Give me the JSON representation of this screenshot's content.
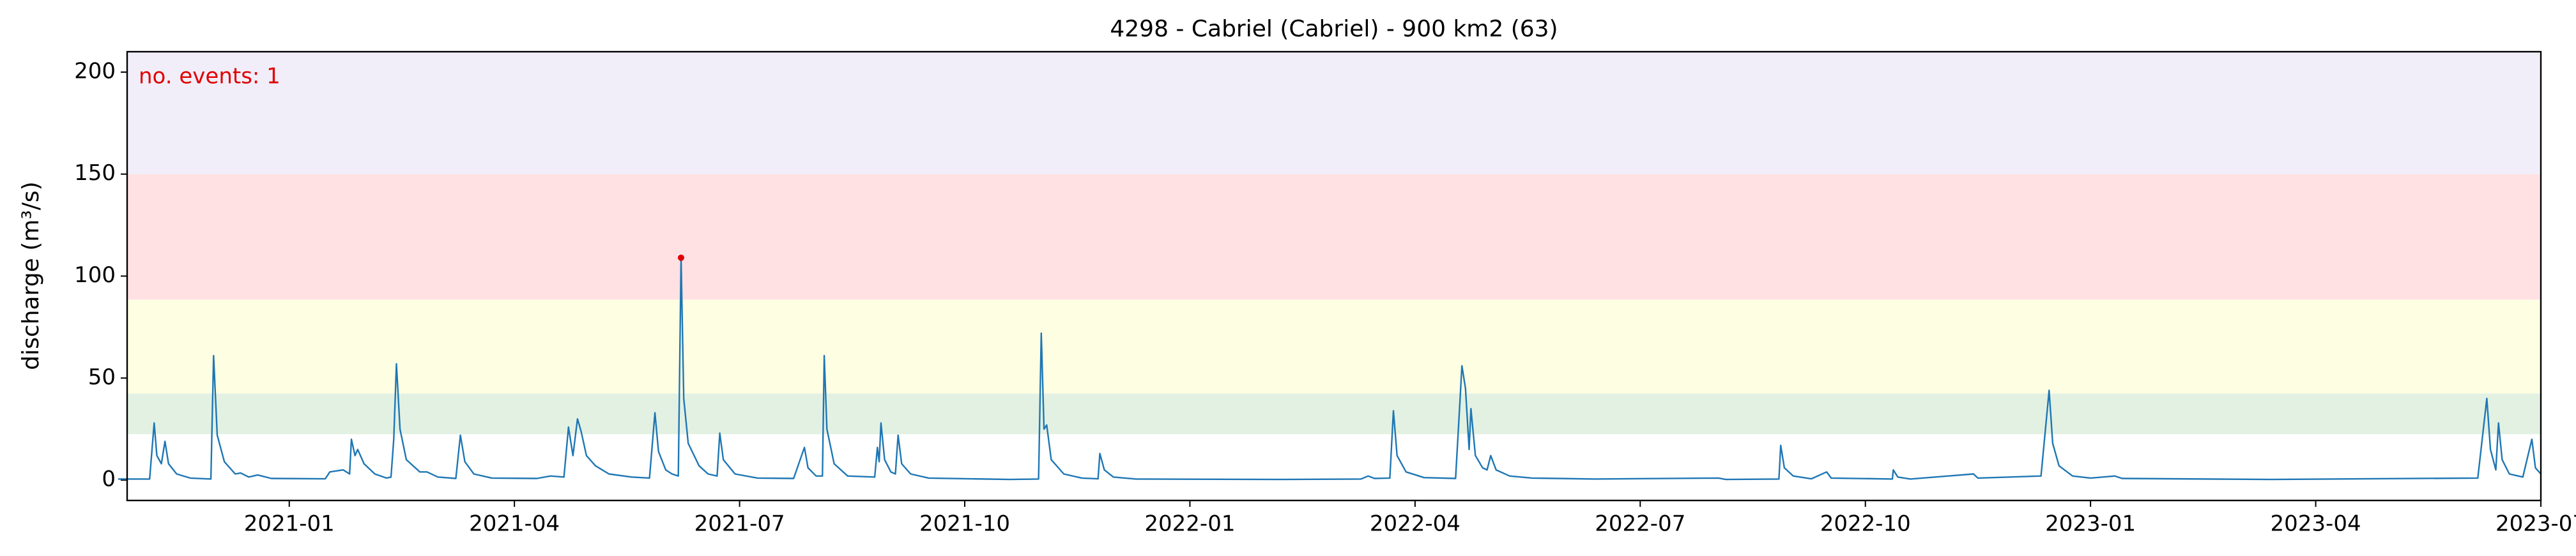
{
  "chart_data": {
    "type": "line",
    "title": "4298 - Cabriel (Cabriel) - 900 km2 (63)",
    "y_label": "discharge (m³/s)",
    "annotation": "no. events: 1",
    "annotation_color": "#e00000",
    "color": "#1f77b4",
    "xlim": [
      2020.82,
      2023.5
    ],
    "ylim": [
      -10,
      210
    ],
    "xticks": [
      {
        "value": 2021.0,
        "label": "2021-01"
      },
      {
        "value": 2021.25,
        "label": "2021-04"
      },
      {
        "value": 2021.5,
        "label": "2021-07"
      },
      {
        "value": 2021.75,
        "label": "2021-10"
      },
      {
        "value": 2022.0,
        "label": "2022-01"
      },
      {
        "value": 2022.25,
        "label": "2022-04"
      },
      {
        "value": 2022.5,
        "label": "2022-07"
      },
      {
        "value": 2022.75,
        "label": "2022-10"
      },
      {
        "value": 2023.0,
        "label": "2023-01"
      },
      {
        "value": 2023.25,
        "label": "2023-04"
      },
      {
        "value": 2023.5,
        "label": "2023-07"
      }
    ],
    "yticks": [
      0,
      50,
      100,
      150,
      200
    ],
    "bands": [
      {
        "from": 22.5,
        "to": 42.5,
        "color": "#e3f1e3"
      },
      {
        "from": 42.5,
        "to": 88.5,
        "color": "#fefee3"
      },
      {
        "from": 88.5,
        "to": 150,
        "color": "#ffe1e3"
      },
      {
        "from": 150,
        "to": 210,
        "color": "#f1eef9"
      }
    ],
    "x": [
      2020.81,
      2020.845,
      2020.85,
      2020.853,
      2020.858,
      2020.862,
      2020.866,
      2020.875,
      2020.89,
      2020.913,
      2020.916,
      2020.92,
      2020.928,
      2020.94,
      2020.946,
      2020.955,
      2020.965,
      2020.98,
      2021.04,
      2021.045,
      2021.06,
      2021.067,
      2021.069,
      2021.073,
      2021.076,
      2021.083,
      2021.095,
      2021.108,
      2021.113,
      2021.116,
      2021.119,
      2021.123,
      2021.13,
      2021.145,
      2021.153,
      2021.165,
      2021.185,
      2021.19,
      2021.195,
      2021.205,
      2021.225,
      2021.275,
      2021.29,
      2021.305,
      2021.31,
      2021.315,
      2021.32,
      2021.324,
      2021.33,
      2021.34,
      2021.355,
      2021.38,
      2021.4,
      2021.406,
      2021.41,
      2021.418,
      2021.425,
      2021.432,
      2021.435,
      2021.438,
      2021.443,
      2021.455,
      2021.465,
      2021.475,
      2021.478,
      2021.482,
      2021.495,
      2021.52,
      2021.56,
      2021.572,
      2021.576,
      2021.585,
      2021.592,
      2021.594,
      2021.597,
      2021.605,
      2021.62,
      2021.65,
      2021.653,
      2021.655,
      2021.657,
      2021.661,
      2021.668,
      2021.673,
      2021.676,
      2021.68,
      2021.69,
      2021.71,
      2021.8,
      2021.832,
      2021.835,
      2021.838,
      2021.841,
      2021.846,
      2021.86,
      2021.88,
      2021.898,
      2021.9,
      2021.905,
      2021.915,
      2021.94,
      2022.1,
      2022.19,
      2022.198,
      2022.205,
      2022.222,
      2022.226,
      2022.23,
      2022.24,
      2022.26,
      2022.295,
      2022.3,
      2022.302,
      2022.306,
      2022.31,
      2022.312,
      2022.317,
      2022.325,
      2022.33,
      2022.334,
      2022.34,
      2022.355,
      2022.38,
      2022.45,
      2022.587,
      2022.595,
      2022.654,
      2022.656,
      2022.66,
      2022.67,
      2022.69,
      2022.707,
      2022.712,
      2022.78,
      2022.781,
      2022.786,
      2022.8,
      2022.87,
      2022.875,
      2022.945,
      2022.951,
      2022.954,
      2022.958,
      2022.965,
      2022.98,
      2023.0,
      2023.027,
      2023.035,
      2023.2,
      2023.43,
      2023.44,
      2023.444,
      2023.45,
      2023.453,
      2023.457,
      2023.465,
      2023.48,
      2023.49,
      2023.494,
      2023.5
    ],
    "values": [
      0.5,
      0.5,
      28,
      12,
      8,
      19,
      8,
      3,
      1,
      0.5,
      61,
      22,
      9,
      3,
      3.5,
      1.5,
      2.5,
      0.8,
      0.6,
      4,
      5,
      3,
      20,
      12,
      15,
      8,
      3,
      1,
      1.5,
      20,
      57,
      25,
      10,
      4,
      4,
      1.5,
      0.8,
      22,
      9,
      3,
      1,
      0.8,
      2,
      1.5,
      26,
      12,
      30,
      24,
      12,
      7,
      3,
      1.5,
      1,
      33,
      14,
      5,
      3,
      2,
      109,
      40,
      18,
      7,
      3,
      2,
      23,
      10,
      3,
      1,
      0.8,
      16,
      6,
      2,
      2,
      61,
      25,
      8,
      2,
      1.5,
      16,
      9,
      28,
      10,
      4,
      3,
      22,
      8,
      3,
      1,
      0.3,
      0.5,
      72,
      25,
      27,
      10,
      3,
      1,
      0.6,
      13,
      5,
      1.5,
      0.5,
      0.3,
      0.5,
      2,
      0.8,
      1,
      34,
      12,
      4,
      1.2,
      0.8,
      40,
      56,
      45,
      15,
      35,
      12,
      6,
      5,
      12,
      5,
      2,
      1,
      0.5,
      1,
      0.3,
      0.5,
      17,
      6,
      2,
      0.6,
      4,
      1,
      0.5,
      5,
      1.5,
      0.5,
      3,
      1,
      2,
      30,
      44,
      18,
      7,
      2,
      1,
      2,
      0.8,
      0.3,
      1,
      40,
      15,
      5,
      28,
      10,
      3,
      1.5,
      20,
      6,
      3
    ],
    "events": {
      "x": [
        2021.435
      ],
      "values": [
        109
      ],
      "color": "#e00000"
    }
  }
}
